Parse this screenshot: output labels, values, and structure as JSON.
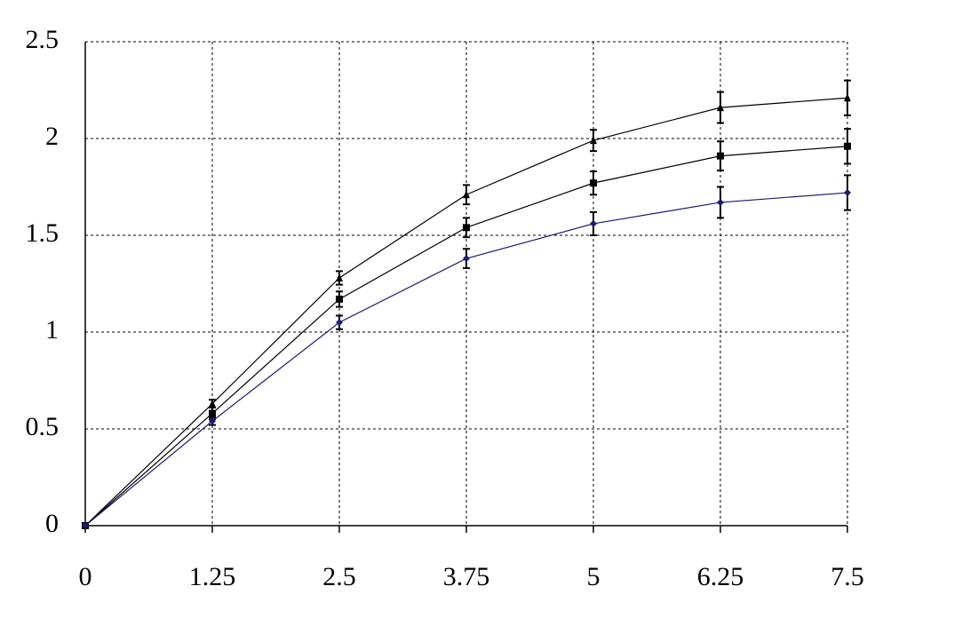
{
  "chart_data": {
    "type": "line",
    "x": [
      0,
      1.25,
      2.5,
      3.75,
      5,
      6.25,
      7.5
    ],
    "series": [
      {
        "color": "#000000",
        "marker": "triangle",
        "values": [
          0,
          0.63,
          1.28,
          1.71,
          1.99,
          2.16,
          2.21
        ],
        "errors": [
          0,
          0.02,
          0.035,
          0.05,
          0.055,
          0.08,
          0.09
        ]
      },
      {
        "color": "#000000",
        "marker": "square",
        "values": [
          0,
          0.58,
          1.17,
          1.54,
          1.77,
          1.91,
          1.96
        ],
        "errors": [
          0,
          0.03,
          0.04,
          0.05,
          0.06,
          0.075,
          0.09
        ]
      },
      {
        "color": "#1a1a6e",
        "marker": "diamond",
        "values": [
          0,
          0.54,
          1.05,
          1.38,
          1.56,
          1.67,
          1.72
        ],
        "errors": [
          0,
          0.02,
          0.035,
          0.05,
          0.06,
          0.08,
          0.09
        ]
      }
    ],
    "xlim": [
      0,
      7.5
    ],
    "xticks": [
      0,
      1.25,
      2.5,
      3.75,
      5,
      6.25,
      7.5
    ],
    "ylim": [
      0,
      2.5
    ],
    "yticks": [
      0,
      0.5,
      1,
      1.5,
      2,
      2.5
    ],
    "grid": true
  }
}
